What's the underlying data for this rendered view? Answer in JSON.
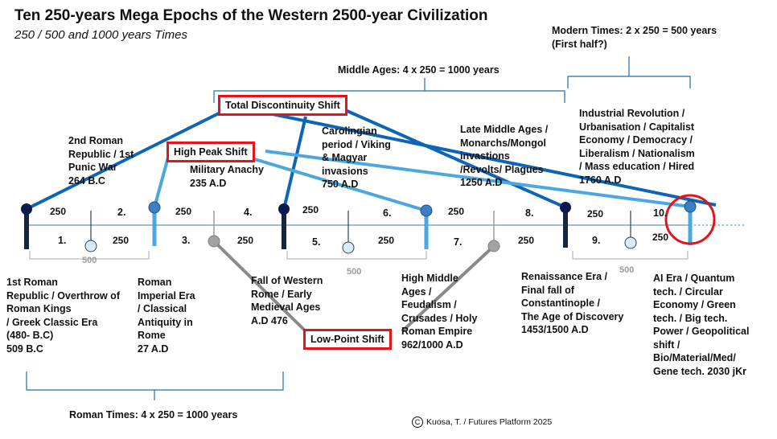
{
  "title": "Ten 250-years Mega Epochs of the Western 2500-year Civilization",
  "subtitle": "250 / 500 and 1000 years Times",
  "brackets": {
    "modern": "Modern Times: 2 x 250 = 500 years\n(First half?)",
    "middle": "Middle Ages: 4 x 250 = 1000 years",
    "roman": "Roman Times: 4 x 250 = 1000 years"
  },
  "shift_labels": {
    "total": "Total Discontinuity Shift",
    "high": "High Peak Shift",
    "low": "Low-Point Shift"
  },
  "epoch_numbers": [
    "1.",
    "2.",
    "3.",
    "4.",
    "5.",
    "6.",
    "7.",
    "8.",
    "9.",
    "10."
  ],
  "duration_label": "250",
  "half_label": "500",
  "epochs": [
    "1st Roman\nRepublic / Overthrow of\nRoman Kings\n/ Greek Classic Era\n(480- B.C)\n509 B.C",
    "2nd Roman\nRepublic / 1st\nPunic War\n264 B.C",
    "Roman\nImperial Era\n/ Classical\nAntiquity in\nRome\n27 A.D",
    "Military Anachy\n235 A.D",
    "Fall of Western\nRome / Early\nMedieval Ages\nA.D 476",
    "Carolingian\nperiod / Viking\n& Magyar\ninvasions\n750 A.D",
    "High Middle\nAges /\nFeudalism /\nCrusades / Holy\nRoman Empire\n962/1000 A.D",
    "Late Middle Ages /\nMonarchs/Mongol\ninvastions\n/Revolts/ Plagues\n1250 A.D",
    "Renaissance Era /\nFinal fall of\nConstantinople /\nThe Age of Discovery\n1453/1500 A.D",
    "Industrial Revolution /\nUrbanisation / Capitalist\nEconomy / Democracy /\nLiberalism / Nationalism\n/ Mass education / Hired\n1760 A.D",
    "AI Era / Quantum\ntech. / Circular\nEconomy / Green\ntech. / Big tech.\nPower / Geopolitical\nshift /\nBio/Material/Med/\nGene tech. 2030 jKr"
  ],
  "footer": {
    "copyright_symbol": "C",
    "credit": "Kuosa, T. / Futures Platform  2025"
  },
  "colors": {
    "dark_blue": "#0e64b5",
    "light_blue": "#4aa8de",
    "gray": "#8a8a8a",
    "navy": "#0b1b4d",
    "highlight_red": "#e3141b"
  }
}
